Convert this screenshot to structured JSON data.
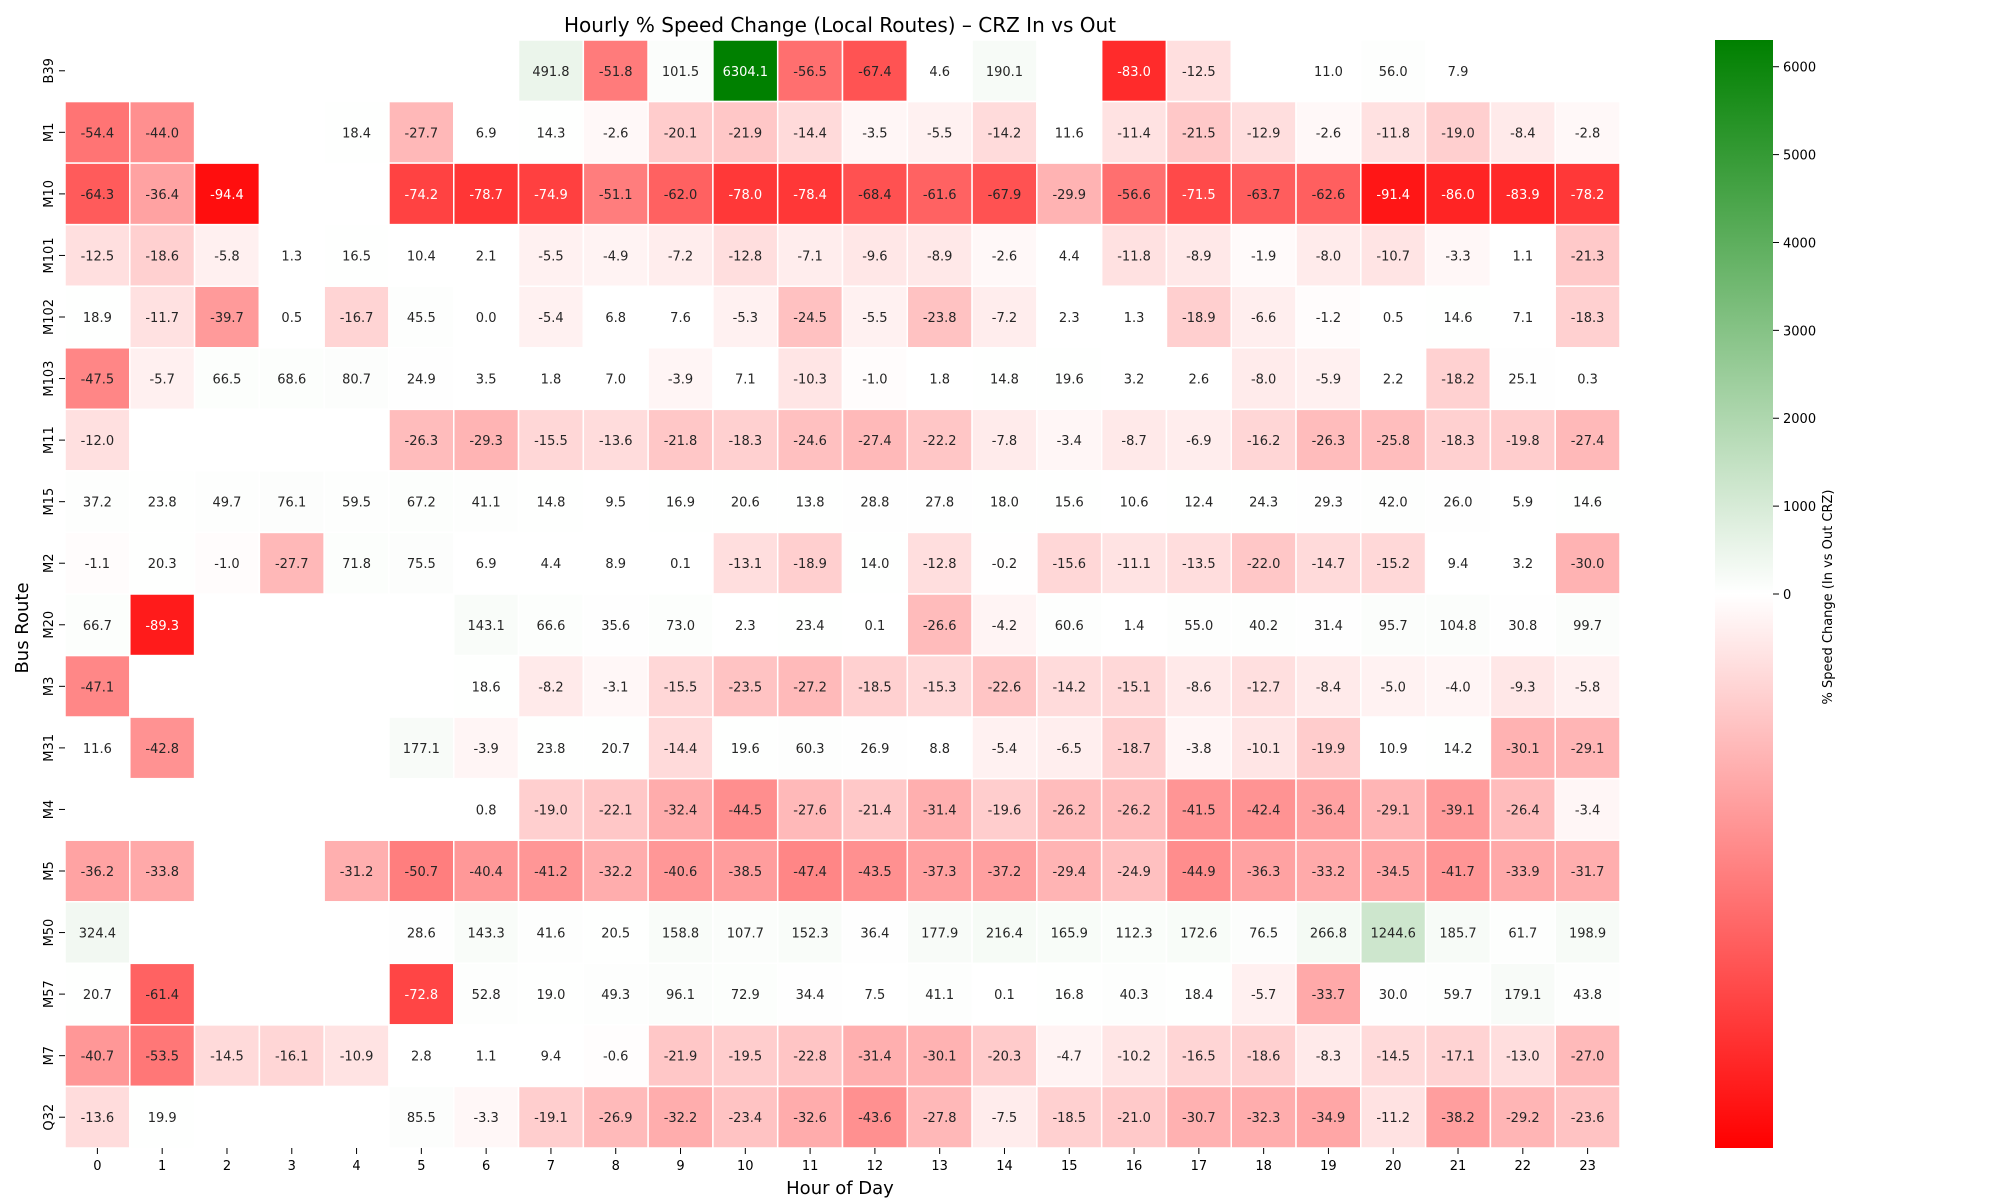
{
  "chart_data": {
    "type": "heatmap",
    "title": "Hourly % Speed Change (Local Routes) – CRZ In vs Out",
    "xlabel": "Hour of Day",
    "ylabel": "Bus Route",
    "x": [
      "0",
      "1",
      "2",
      "3",
      "4",
      "5",
      "6",
      "7",
      "8",
      "9",
      "10",
      "11",
      "12",
      "13",
      "14",
      "15",
      "16",
      "17",
      "18",
      "19",
      "20",
      "21",
      "22",
      "23"
    ],
    "y": [
      "B39",
      "M1",
      "M10",
      "M101",
      "M102",
      "M103",
      "M11",
      "M15",
      "M2",
      "M20",
      "M3",
      "M31",
      "M4",
      "M5",
      "M50",
      "M57",
      "M7",
      "Q32"
    ],
    "values": [
      [
        null,
        null,
        null,
        null,
        null,
        null,
        null,
        491.8,
        -51.8,
        101.5,
        6304.1,
        -56.5,
        -67.4,
        4.6,
        190.1,
        null,
        -83.0,
        -12.5,
        null,
        11.0,
        56.0,
        7.9,
        null,
        null
      ],
      [
        -54.4,
        -44.0,
        null,
        null,
        18.4,
        -27.7,
        6.9,
        14.3,
        -2.6,
        -20.1,
        -21.9,
        -14.4,
        -3.5,
        -5.5,
        -14.2,
        11.6,
        -11.4,
        -21.5,
        -12.9,
        -2.6,
        -11.8,
        -19.0,
        -8.4,
        -2.8
      ],
      [
        -64.3,
        -36.4,
        -94.4,
        null,
        null,
        -74.2,
        -78.7,
        -74.9,
        -51.1,
        -62.0,
        -78.0,
        -78.4,
        -68.4,
        -61.6,
        -67.9,
        -29.9,
        -56.6,
        -71.5,
        -63.7,
        -62.6,
        -91.4,
        -86.0,
        -83.9,
        -78.2
      ],
      [
        -12.5,
        -18.6,
        -5.8,
        1.3,
        16.5,
        10.4,
        2.1,
        -5.5,
        -4.9,
        -7.2,
        -12.8,
        -7.1,
        -9.6,
        -8.9,
        -2.6,
        4.4,
        -11.8,
        -8.9,
        -1.9,
        -8.0,
        -10.7,
        -3.3,
        1.1,
        -21.3
      ],
      [
        18.9,
        -11.7,
        -39.7,
        0.5,
        -16.7,
        45.5,
        0.0,
        -5.4,
        6.8,
        7.6,
        -5.3,
        -24.5,
        -5.5,
        -23.8,
        -7.2,
        2.3,
        1.3,
        -18.9,
        -6.6,
        -1.2,
        0.5,
        14.6,
        7.1,
        -18.3
      ],
      [
        -47.5,
        -5.7,
        66.5,
        68.6,
        80.7,
        24.9,
        3.5,
        1.8,
        7.0,
        -3.9,
        7.1,
        -10.3,
        -1.0,
        1.8,
        14.8,
        19.6,
        3.2,
        2.6,
        -8.0,
        -5.9,
        2.2,
        -18.2,
        25.1,
        0.3
      ],
      [
        -12.0,
        null,
        null,
        null,
        null,
        -26.3,
        -29.3,
        -15.5,
        -13.6,
        -21.8,
        -18.3,
        -24.6,
        -27.4,
        -22.2,
        -7.8,
        -3.4,
        -8.7,
        -6.9,
        -16.2,
        -26.3,
        -25.8,
        -18.3,
        -19.8,
        -27.4
      ],
      [
        37.2,
        23.8,
        49.7,
        76.1,
        59.5,
        67.2,
        41.1,
        14.8,
        9.5,
        16.9,
        20.6,
        13.8,
        28.8,
        27.8,
        18.0,
        15.6,
        10.6,
        12.4,
        24.3,
        29.3,
        42.0,
        26.0,
        5.9,
        14.6
      ],
      [
        -1.1,
        20.3,
        -1.0,
        -27.7,
        71.8,
        75.5,
        6.9,
        4.4,
        8.9,
        0.1,
        -13.1,
        -18.9,
        14.0,
        -12.8,
        -0.2,
        -15.6,
        -11.1,
        -13.5,
        -22.0,
        -14.7,
        -15.2,
        9.4,
        3.2,
        -30.0
      ],
      [
        66.7,
        -89.3,
        null,
        null,
        null,
        null,
        143.1,
        66.6,
        35.6,
        73.0,
        2.3,
        23.4,
        0.1,
        -26.6,
        -4.2,
        60.6,
        1.4,
        55.0,
        40.2,
        31.4,
        95.7,
        104.8,
        30.8,
        99.7
      ],
      [
        -47.1,
        null,
        null,
        null,
        null,
        null,
        18.6,
        -8.2,
        -3.1,
        -15.5,
        -23.5,
        -27.2,
        -18.5,
        -15.3,
        -22.6,
        -14.2,
        -15.1,
        -8.6,
        -12.7,
        -8.4,
        -5.0,
        -4.0,
        -9.3,
        -5.8
      ],
      [
        11.6,
        -42.8,
        null,
        null,
        null,
        177.1,
        -3.9,
        23.8,
        20.7,
        -14.4,
        19.6,
        60.3,
        26.9,
        8.8,
        -5.4,
        -6.5,
        -18.7,
        -3.8,
        -10.1,
        -19.9,
        10.9,
        14.2,
        -30.1,
        -29.1
      ],
      [
        null,
        null,
        null,
        null,
        null,
        null,
        0.8,
        -19.0,
        -22.1,
        -32.4,
        -44.5,
        -27.6,
        -21.4,
        -31.4,
        -19.6,
        -26.2,
        -26.2,
        -41.5,
        -42.4,
        -36.4,
        -29.1,
        -39.1,
        -26.4,
        -3.4
      ],
      [
        -36.2,
        -33.8,
        null,
        null,
        -31.2,
        -50.7,
        -40.4,
        -41.2,
        -32.2,
        -40.6,
        -38.5,
        -47.4,
        -43.5,
        -37.3,
        -37.2,
        -29.4,
        -24.9,
        -44.9,
        -36.3,
        -33.2,
        -34.5,
        -41.7,
        -33.9,
        -31.7
      ],
      [
        324.4,
        null,
        null,
        null,
        null,
        28.6,
        143.3,
        41.6,
        20.5,
        158.8,
        107.7,
        152.3,
        36.4,
        177.9,
        216.4,
        165.9,
        112.3,
        172.6,
        76.5,
        266.8,
        1244.6,
        185.7,
        61.7,
        198.9
      ],
      [
        20.7,
        -61.4,
        null,
        null,
        null,
        -72.8,
        52.8,
        19.0,
        49.3,
        96.1,
        72.9,
        34.4,
        7.5,
        41.1,
        0.1,
        16.8,
        40.3,
        18.4,
        -5.7,
        -33.7,
        30.0,
        59.7,
        179.1,
        43.8
      ],
      [
        -40.7,
        -53.5,
        -14.5,
        -16.1,
        -10.9,
        2.8,
        1.1,
        9.4,
        -0.6,
        -21.9,
        -19.5,
        -22.8,
        -31.4,
        -30.1,
        -20.3,
        -4.7,
        -10.2,
        -16.5,
        -18.6,
        -8.3,
        -14.5,
        -17.1,
        -13.0,
        -27.0
      ],
      [
        -13.6,
        19.9,
        null,
        null,
        null,
        85.5,
        -3.3,
        -19.1,
        -26.9,
        -32.2,
        -23.4,
        -32.6,
        -43.6,
        -27.8,
        -7.5,
        -18.5,
        -21.0,
        -30.7,
        -32.3,
        -34.9,
        -11.2,
        -38.2,
        -29.2,
        -23.6
      ]
    ],
    "colorbar": {
      "label": "% Speed Change (In vs Out CRZ)",
      "ticks": [
        0,
        1000,
        2000,
        3000,
        4000,
        5000,
        6000
      ],
      "vmin": -100,
      "vmax": 6304.1,
      "neg_color": "#ff0000",
      "mid_color": "#ffffff",
      "pos_color": "#008000"
    },
    "legend": "none",
    "grid": false
  }
}
